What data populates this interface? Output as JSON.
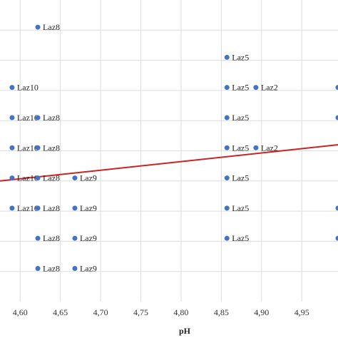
{
  "chart_data": {
    "type": "scatter",
    "title": "",
    "xlabel": "pH",
    "ylabel": "",
    "xlim": [
      4.575,
      4.995
    ],
    "ylim": [
      0,
      10
    ],
    "x_ticks": [
      {
        "value": 4.6,
        "label": "4,60"
      },
      {
        "value": 4.65,
        "label": "4,65"
      },
      {
        "value": 4.7,
        "label": "4,70"
      },
      {
        "value": 4.75,
        "label": "4,75"
      },
      {
        "value": 4.8,
        "label": "4,80"
      },
      {
        "value": 4.85,
        "label": "4,85"
      },
      {
        "value": 4.9,
        "label": "4,90"
      },
      {
        "value": 4.95,
        "label": "4,95"
      }
    ],
    "y_gridlines": [
      1,
      2,
      3,
      4,
      5,
      6,
      7,
      8,
      9
    ],
    "grid": true,
    "legend": "none",
    "colors": {
      "points": "#4472c4",
      "trendline": "#cc2222",
      "grid": "#dddddd"
    },
    "points": [
      {
        "x": 4.622,
        "y": 9.1,
        "label": "Laz8"
      },
      {
        "x": 4.857,
        "y": 8.1,
        "label": "Laz5"
      },
      {
        "x": 4.59,
        "y": 7.1,
        "label": "Laz10"
      },
      {
        "x": 4.857,
        "y": 7.1,
        "label": "Laz5"
      },
      {
        "x": 4.893,
        "y": 7.1,
        "label": "Laz2"
      },
      {
        "x": 4.995,
        "y": 7.1,
        "label": ""
      },
      {
        "x": 4.59,
        "y": 6.1,
        "label": "Laz10"
      },
      {
        "x": 4.622,
        "y": 6.1,
        "label": "Laz8"
      },
      {
        "x": 4.857,
        "y": 6.1,
        "label": "Laz5"
      },
      {
        "x": 4.995,
        "y": 6.1,
        "label": ""
      },
      {
        "x": 4.59,
        "y": 5.1,
        "label": "Laz10"
      },
      {
        "x": 4.622,
        "y": 5.1,
        "label": "Laz8"
      },
      {
        "x": 4.857,
        "y": 5.1,
        "label": "Laz5"
      },
      {
        "x": 4.893,
        "y": 5.1,
        "label": "Laz2"
      },
      {
        "x": 4.59,
        "y": 4.1,
        "label": "Laz10"
      },
      {
        "x": 4.622,
        "y": 4.1,
        "label": "Laz8"
      },
      {
        "x": 4.668,
        "y": 4.1,
        "label": "Laz9"
      },
      {
        "x": 4.857,
        "y": 4.1,
        "label": "Laz5"
      },
      {
        "x": 4.59,
        "y": 3.1,
        "label": "Laz10"
      },
      {
        "x": 4.622,
        "y": 3.1,
        "label": "Laz8"
      },
      {
        "x": 4.668,
        "y": 3.1,
        "label": "Laz9"
      },
      {
        "x": 4.857,
        "y": 3.1,
        "label": "Laz5"
      },
      {
        "x": 4.995,
        "y": 3.1,
        "label": ""
      },
      {
        "x": 4.622,
        "y": 2.1,
        "label": "Laz8"
      },
      {
        "x": 4.668,
        "y": 2.1,
        "label": "Laz9"
      },
      {
        "x": 4.857,
        "y": 2.1,
        "label": "Laz5"
      },
      {
        "x": 4.995,
        "y": 2.1,
        "label": ""
      },
      {
        "x": 4.622,
        "y": 1.1,
        "label": "Laz8"
      },
      {
        "x": 4.668,
        "y": 1.1,
        "label": "Laz9"
      }
    ],
    "trendline": {
      "x": [
        4.575,
        4.995
      ],
      "y": [
        4.0,
        5.2
      ]
    }
  }
}
